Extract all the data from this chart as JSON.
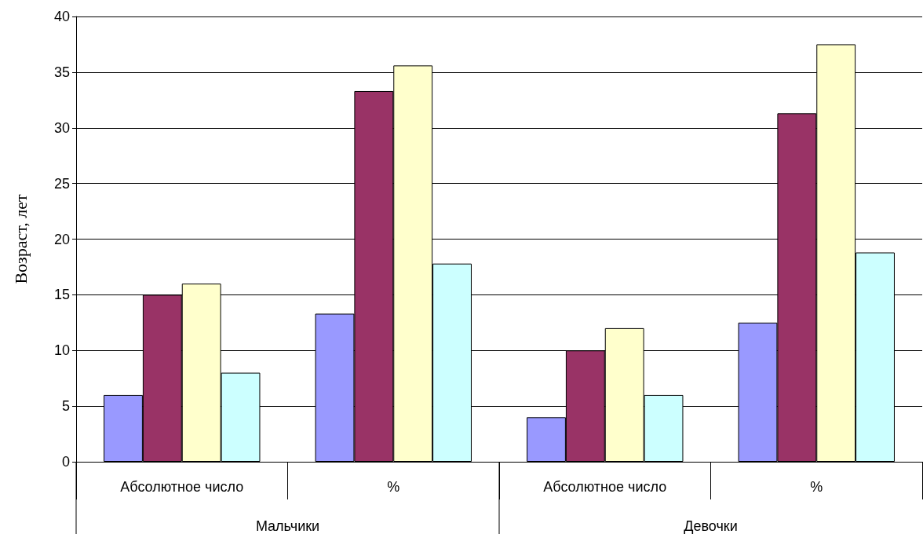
{
  "chart_data": {
    "type": "bar",
    "ylabel": "Возраст, лет",
    "categories": [
      "Абсолютное число",
      "%",
      "Абсолютное число",
      "%"
    ],
    "series": [
      {
        "color": "#9999ff",
        "values": [
          6,
          13.3,
          4,
          12.5
        ]
      },
      {
        "color": "#993366",
        "values": [
          15,
          33.3,
          10,
          31.3
        ]
      },
      {
        "color": "#ffffcc",
        "values": [
          16,
          35.6,
          12,
          37.5
        ]
      },
      {
        "color": "#ccffff",
        "values": [
          8,
          17.8,
          6,
          18.8
        ]
      }
    ],
    "ylim": [
      0,
      40
    ],
    "yticks": [
      0,
      5,
      10,
      15,
      20,
      25,
      30,
      35,
      40
    ],
    "grid": "y",
    "annotations": [
      "Мальчики",
      "Девочки"
    ]
  }
}
